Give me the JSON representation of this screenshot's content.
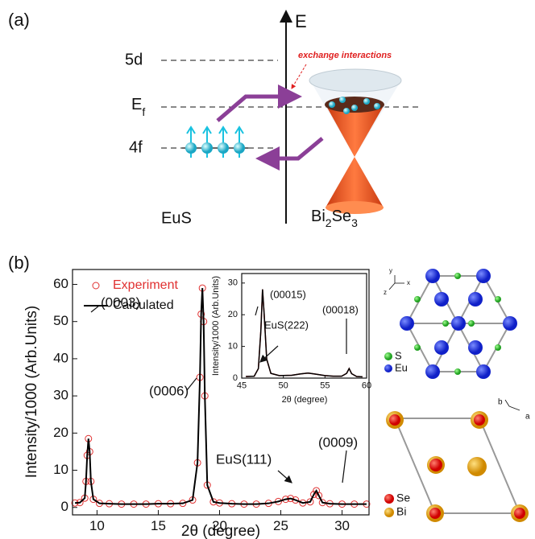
{
  "panel_a": {
    "label": "(a)",
    "energy_axis": "E",
    "level_5d": "5d",
    "level_ef": [
      "E",
      "f"
    ],
    "level_4f": "4f",
    "annotation": "exchange interactions",
    "left_material": "EuS",
    "right_material": [
      "Bi",
      "2",
      "Se",
      "3"
    ]
  },
  "panel_b": {
    "label": "(b)"
  },
  "chart_data": [
    {
      "type": "line",
      "xlabel": "2θ (degree)",
      "ylabel": "Intensity/1000 (Arb.Units)",
      "x": [
        8.2,
        8.6,
        9.0,
        9.1,
        9.2,
        9.3,
        9.4,
        9.5,
        9.7,
        10.2,
        11,
        12,
        13,
        14,
        15,
        16,
        17,
        17.8,
        18.2,
        18.4,
        18.5,
        18.6,
        18.7,
        18.8,
        19.0,
        19.5,
        20,
        21,
        22,
        23,
        24,
        24.8,
        25.4,
        25.8,
        26.2,
        26.8,
        27.4,
        27.7,
        27.9,
        28.1,
        28.4,
        29,
        30,
        31,
        32
      ],
      "series": [
        {
          "name": "Experiment",
          "color": "#e03030",
          "marker": "circle",
          "values": [
            1.2,
            1.3,
            2.5,
            7,
            14,
            18.5,
            15,
            7,
            2.2,
            1.1,
            1.0,
            0.9,
            0.9,
            0.9,
            1.0,
            1.0,
            1.1,
            2,
            12,
            35,
            52,
            59,
            50,
            30,
            6,
            1.5,
            1.2,
            1.0,
            0.9,
            0.9,
            1.1,
            1.6,
            2.2,
            2.4,
            2.0,
            1.2,
            1.5,
            3.5,
            4.5,
            3.2,
            1.3,
            1.0,
            0.9,
            0.9,
            0.9
          ]
        },
        {
          "name": "Calculated",
          "color": "#000000",
          "values": [
            1.2,
            1.3,
            2.5,
            7,
            14,
            18.5,
            15,
            7,
            2.2,
            1.1,
            1.0,
            0.9,
            0.9,
            0.9,
            1.0,
            1.0,
            1.1,
            2,
            12,
            35,
            52,
            59,
            50,
            30,
            6,
            1.5,
            1.2,
            1.0,
            0.9,
            0.9,
            1.1,
            1.6,
            2.2,
            2.4,
            2.0,
            1.2,
            1.5,
            3.5,
            4.5,
            3.2,
            1.3,
            1.0,
            0.9,
            0.9,
            0.9
          ]
        }
      ],
      "xlim": [
        8,
        32.2
      ],
      "ylim": [
        -2,
        64
      ],
      "xticks": [
        10,
        15,
        20,
        25,
        30
      ],
      "yticks": [
        0,
        10,
        20,
        30,
        40,
        50,
        60
      ],
      "legend": "upper left",
      "annotations": [
        "(0003)",
        "(0006)",
        "EuS(111)",
        "(0009)"
      ]
    },
    {
      "type": "line",
      "xlabel": "2θ (degree)",
      "ylabel": "Intensity/1000 (Arb.Units)",
      "x": [
        45.5,
        46.5,
        47.0,
        47.3,
        47.5,
        47.7,
        48.0,
        48.5,
        49.5,
        51,
        52,
        53,
        54,
        55,
        56,
        57,
        57.6,
        57.9,
        58.2,
        58.8,
        59.5
      ],
      "series": [
        {
          "color": "#e03030",
          "values": [
            0.5,
            0.6,
            3,
            15,
            28,
            20,
            6,
            1.5,
            0.8,
            0.9,
            1.3,
            1.6,
            1.2,
            0.8,
            0.6,
            0.6,
            1.5,
            3,
            1.4,
            0.5,
            0.4
          ]
        },
        {
          "color": "#000000",
          "values": [
            0.5,
            0.6,
            3,
            15,
            28,
            20,
            6,
            1.5,
            0.8,
            0.9,
            1.3,
            1.6,
            1.2,
            0.8,
            0.6,
            0.6,
            1.5,
            3,
            1.4,
            0.5,
            0.4
          ]
        }
      ],
      "xlim": [
        45,
        60
      ],
      "ylim": [
        0,
        33
      ],
      "xticks": [
        45,
        50,
        55,
        60
      ],
      "yticks": [
        0,
        10,
        20,
        30
      ],
      "annotations": [
        "(00015)",
        "EuS(222)",
        "(00018)"
      ]
    }
  ],
  "crystal": {
    "axes": [
      "y",
      "x",
      "z"
    ],
    "top_legend": [
      "S",
      "Eu"
    ],
    "bottom_axes": [
      "b",
      "a"
    ],
    "bottom_legend": [
      "Se",
      "Bi"
    ]
  }
}
